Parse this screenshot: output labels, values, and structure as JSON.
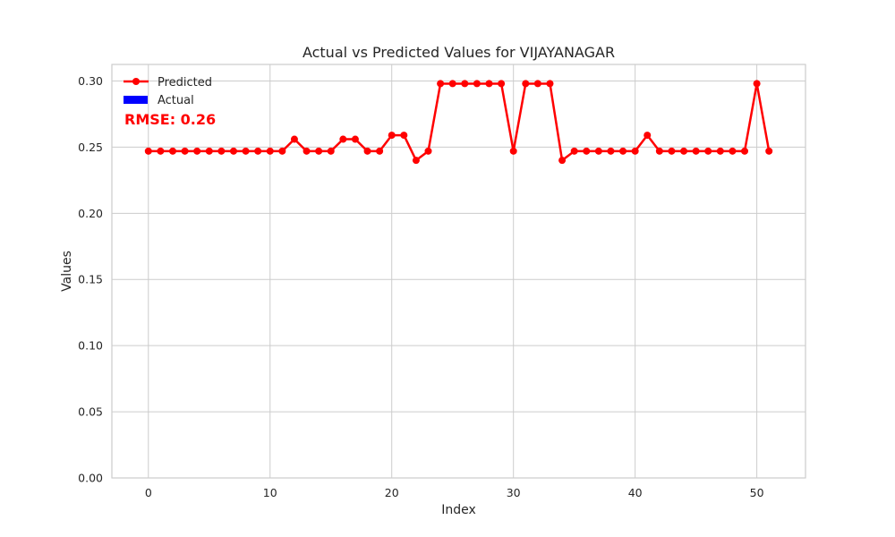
{
  "chart_data": {
    "type": "line",
    "title": "Actual vs Predicted Values for VIJAYANAGAR",
    "xlabel": "Index",
    "ylabel": "Values",
    "xlim": [
      -3,
      54
    ],
    "ylim": [
      0,
      0.3125
    ],
    "x_ticks": [
      0,
      10,
      20,
      30,
      40,
      50
    ],
    "x_tick_labels": [
      "0",
      "10",
      "20",
      "30",
      "40",
      "50"
    ],
    "y_ticks": [
      0,
      0.05,
      0.1,
      0.15,
      0.2,
      0.25,
      0.3
    ],
    "y_tick_labels": [
      "0.00",
      "0.05",
      "0.10",
      "0.15",
      "0.20",
      "0.25",
      "0.30"
    ],
    "grid": true,
    "legend_placement": "upper-left",
    "annotation": {
      "text": "RMSE: 0.26",
      "color": "#ff0000"
    },
    "series": [
      {
        "name": "Predicted",
        "color": "#ff0000",
        "marker": "circle",
        "x": [
          0,
          1,
          2,
          3,
          4,
          5,
          6,
          7,
          8,
          9,
          10,
          11,
          12,
          13,
          14,
          15,
          16,
          17,
          18,
          19,
          20,
          21,
          22,
          23,
          24,
          25,
          26,
          27,
          28,
          29,
          30,
          31,
          32,
          33,
          34,
          35,
          36,
          37,
          38,
          39,
          40,
          41,
          42,
          43,
          44,
          45,
          46,
          47,
          48,
          49,
          50,
          51
        ],
        "values": [
          0.247,
          0.247,
          0.247,
          0.247,
          0.247,
          0.247,
          0.247,
          0.247,
          0.247,
          0.247,
          0.247,
          0.247,
          0.256,
          0.247,
          0.247,
          0.247,
          0.256,
          0.256,
          0.247,
          0.247,
          0.259,
          0.259,
          0.24,
          0.247,
          0.298,
          0.298,
          0.298,
          0.298,
          0.298,
          0.298,
          0.247,
          0.298,
          0.298,
          0.298,
          0.24,
          0.247,
          0.247,
          0.247,
          0.247,
          0.247,
          0.247,
          0.259,
          0.247,
          0.247,
          0.247,
          0.247,
          0.247,
          0.247,
          0.247,
          0.247,
          0.298,
          0.247
        ]
      },
      {
        "name": "Actual",
        "color": "#0000ff",
        "style": "bar",
        "values": []
      }
    ]
  }
}
